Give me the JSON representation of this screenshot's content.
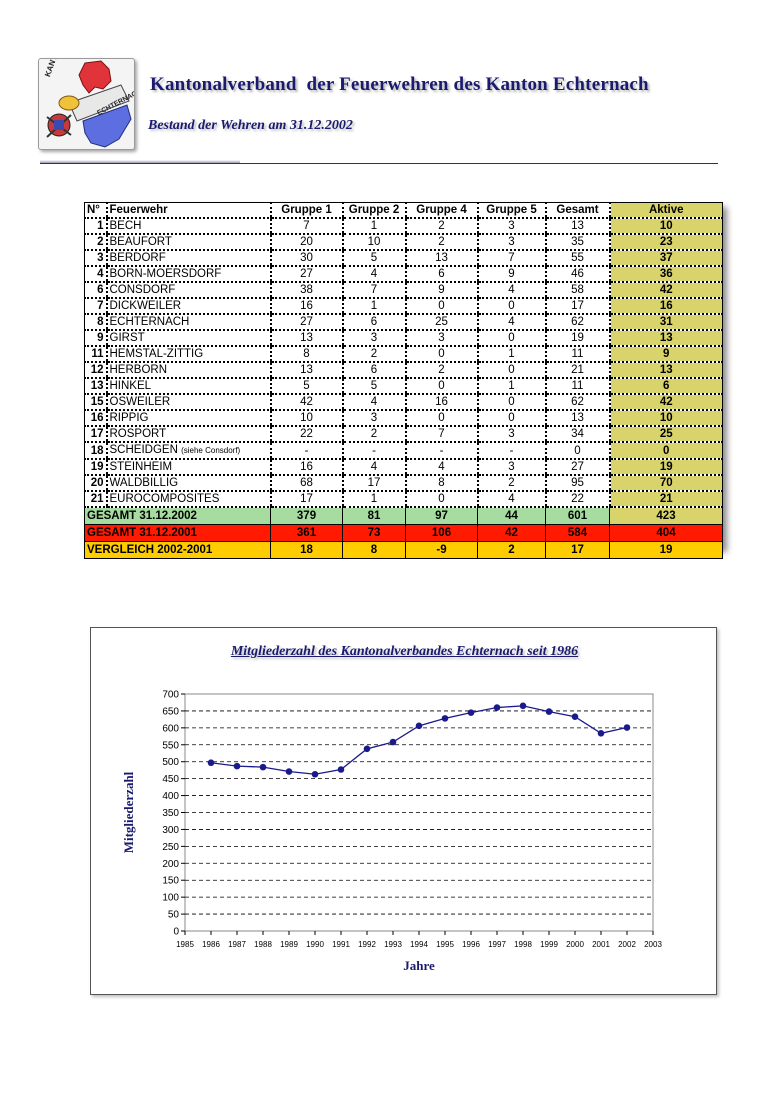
{
  "header": {
    "logo": {
      "text_top": "KANTONAL-VERBAND",
      "text_band": "ECHTERNACH"
    },
    "title": "Kantonalverband  der Feuerwehren des Kanton Echternach",
    "subtitle": "Bestand der Wehren am 31.12.2002"
  },
  "table": {
    "headers": [
      "N°",
      "Feuerwehr",
      "Gruppe 1",
      "Gruppe 2",
      "Gruppe 4",
      "Gruppe 5",
      "Gesamt",
      "Aktive"
    ],
    "rows": [
      {
        "no": "1",
        "name": "BECH",
        "note": "",
        "g1": "7",
        "g2": "1",
        "g4": "2",
        "g5": "3",
        "gesamt": "13",
        "aktive": "10"
      },
      {
        "no": "2",
        "name": "BEAUFORT",
        "note": "",
        "g1": "20",
        "g2": "10",
        "g4": "2",
        "g5": "3",
        "gesamt": "35",
        "aktive": "23"
      },
      {
        "no": "3",
        "name": "BERDORF",
        "note": "",
        "g1": "30",
        "g2": "5",
        "g4": "13",
        "g5": "7",
        "gesamt": "55",
        "aktive": "37"
      },
      {
        "no": "4",
        "name": "BORN-MOERSDORF",
        "note": "",
        "g1": "27",
        "g2": "4",
        "g4": "6",
        "g5": "9",
        "gesamt": "46",
        "aktive": "36"
      },
      {
        "no": "6",
        "name": "CONSDORF",
        "note": "",
        "g1": "38",
        "g2": "7",
        "g4": "9",
        "g5": "4",
        "gesamt": "58",
        "aktive": "42"
      },
      {
        "no": "7",
        "name": "DICKWEILER",
        "note": "",
        "g1": "16",
        "g2": "1",
        "g4": "0",
        "g5": "0",
        "gesamt": "17",
        "aktive": "16"
      },
      {
        "no": "8",
        "name": "ECHTERNACH",
        "note": "",
        "g1": "27",
        "g2": "6",
        "g4": "25",
        "g5": "4",
        "gesamt": "62",
        "aktive": "31"
      },
      {
        "no": "9",
        "name": "GIRST",
        "note": "",
        "g1": "13",
        "g2": "3",
        "g4": "3",
        "g5": "0",
        "gesamt": "19",
        "aktive": "13"
      },
      {
        "no": "11",
        "name": "HEMSTAL-ZITTIG",
        "note": "",
        "g1": "8",
        "g2": "2",
        "g4": "0",
        "g5": "1",
        "gesamt": "11",
        "aktive": "9"
      },
      {
        "no": "12",
        "name": "HERBORN",
        "note": "",
        "g1": "13",
        "g2": "6",
        "g4": "2",
        "g5": "0",
        "gesamt": "21",
        "aktive": "13"
      },
      {
        "no": "13",
        "name": "HINKEL",
        "note": "",
        "g1": "5",
        "g2": "5",
        "g4": "0",
        "g5": "1",
        "gesamt": "11",
        "aktive": "6"
      },
      {
        "no": "15",
        "name": "OSWEILER",
        "note": "",
        "g1": "42",
        "g2": "4",
        "g4": "16",
        "g5": "0",
        "gesamt": "62",
        "aktive": "42"
      },
      {
        "no": "16",
        "name": "RIPPIG",
        "note": "",
        "g1": "10",
        "g2": "3",
        "g4": "0",
        "g5": "0",
        "gesamt": "13",
        "aktive": "10"
      },
      {
        "no": "17",
        "name": "ROSPORT",
        "note": "",
        "g1": "22",
        "g2": "2",
        "g4": "7",
        "g5": "3",
        "gesamt": "34",
        "aktive": "25"
      },
      {
        "no": "18",
        "name": "SCHEIDGEN",
        "note": "(siehe Consdorf)",
        "g1": "-",
        "g2": "-",
        "g4": "-",
        "g5": "-",
        "gesamt": "0",
        "aktive": "0"
      },
      {
        "no": "19",
        "name": "STEINHEIM",
        "note": "",
        "g1": "16",
        "g2": "4",
        "g4": "4",
        "g5": "3",
        "gesamt": "27",
        "aktive": "19"
      },
      {
        "no": "20",
        "name": "WALDBILLIG",
        "note": "",
        "g1": "68",
        "g2": "17",
        "g4": "8",
        "g5": "2",
        "gesamt": "95",
        "aktive": "70"
      },
      {
        "no": "21",
        "name": "EUROCOMPOSITES",
        "note": "",
        "g1": "17",
        "g2": "1",
        "g4": "0",
        "g5": "4",
        "gesamt": "22",
        "aktive": "21"
      }
    ],
    "summary": [
      {
        "label": "GESAMT 31.12.2002",
        "g1": "379",
        "g2": "81",
        "g4": "97",
        "g5": "44",
        "gesamt": "601",
        "aktive": "423",
        "color": "#a6dc9f"
      },
      {
        "label": "GESAMT 31.12.2001",
        "g1": "361",
        "g2": "73",
        "g4": "106",
        "g5": "42",
        "gesamt": "584",
        "aktive": "404",
        "color": "#ff1a00"
      },
      {
        "label": "VERGLEICH 2002-2001",
        "g1": "18",
        "g2": "8",
        "g4": "-9",
        "g5": "2",
        "gesamt": "17",
        "aktive": "19",
        "color": "#ffcc00"
      }
    ]
  },
  "chart_data": {
    "type": "line",
    "title": "Mitgliederzahl des Kantonalverbandes Echternach seit 1986",
    "xlabel": "Jahre",
    "ylabel": "Mitgliederzahl",
    "xlim": [
      1985,
      2003
    ],
    "ylim": [
      0,
      700
    ],
    "x_ticks": [
      1985,
      1986,
      1987,
      1988,
      1989,
      1990,
      1991,
      1992,
      1993,
      1994,
      1995,
      1996,
      1997,
      1998,
      1999,
      2000,
      2001,
      2002,
      2003
    ],
    "y_ticks": [
      0,
      50,
      100,
      150,
      200,
      250,
      300,
      350,
      400,
      450,
      500,
      550,
      600,
      650,
      700
    ],
    "grid": "horizontal dashed",
    "legend": "none",
    "line_color": "#1a1a8c",
    "x": [
      1986,
      1987,
      1988,
      1989,
      1990,
      1991,
      1992,
      1993,
      1994,
      1995,
      1996,
      1997,
      1998,
      1999,
      2000,
      2001,
      2002
    ],
    "values": [
      497,
      487,
      484,
      471,
      463,
      477,
      538,
      558,
      606,
      628,
      645,
      660,
      665,
      648,
      633,
      584,
      601
    ]
  }
}
